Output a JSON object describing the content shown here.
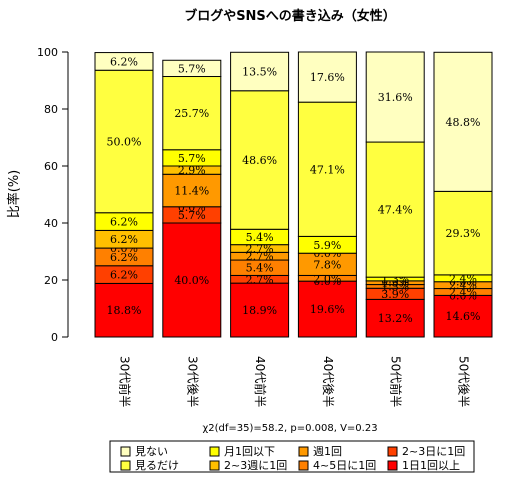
{
  "chart_data": {
    "type": "bar",
    "stacked": true,
    "title": "ブログやSNSへの書き込み（女性）",
    "ylabel": "比率(%)",
    "xlabel": "",
    "ylim": [
      0,
      100
    ],
    "yticks": [
      "0",
      "20",
      "40",
      "60",
      "80",
      "100"
    ],
    "categories": [
      "30代前半",
      "30代後半",
      "40代前半",
      "40代後半",
      "50代前半",
      "50代後半"
    ],
    "series": [
      {
        "name": "1日1回以上",
        "color": "#ff0000",
        "values": [
          18.8,
          40.0,
          18.9,
          19.6,
          13.2,
          14.6
        ],
        "labels": [
          "18.8%",
          "40.0%",
          "18.9%",
          "19.6%",
          "13.2%",
          "14.6%"
        ]
      },
      {
        "name": "2~3日に1回",
        "color": "#ff4000",
        "values": [
          6.2,
          5.7,
          2.7,
          0.0,
          3.9,
          0.0
        ],
        "labels": [
          "6.2%",
          "5.7%",
          "2.7%",
          "0.0%",
          "3.9%",
          "0.0%"
        ]
      },
      {
        "name": "4~5日に1回",
        "color": "#ff8000",
        "values": [
          6.2,
          0.0,
          5.4,
          2.0,
          1.3,
          2.4
        ],
        "labels": [
          "6.2%",
          "0.0%",
          "5.4%",
          "2.0%",
          "1.3%",
          "2.4%"
        ]
      },
      {
        "name": "週1回",
        "color": "#ff9900",
        "values": [
          0.0,
          11.4,
          2.7,
          7.8,
          1.3,
          2.4
        ],
        "labels": [
          "0.0%",
          "11.4%",
          "2.7%",
          "7.8%",
          "1.3%",
          "2.4%"
        ]
      },
      {
        "name": "2~3週に1回",
        "color": "#ffbf00",
        "values": [
          6.2,
          2.9,
          2.7,
          0.0,
          0.0,
          0.0
        ],
        "labels": [
          "6.2%",
          "2.9%",
          "2.7%",
          "0.0%",
          "0.0%",
          "0.0%"
        ]
      },
      {
        "name": "月1回以下",
        "color": "#ffff00",
        "values": [
          6.2,
          5.7,
          5.4,
          5.9,
          1.3,
          2.4
        ],
        "labels": [
          "6.2%",
          "5.7%",
          "5.4%",
          "5.9%",
          "1.3%",
          "2.4%"
        ]
      },
      {
        "name": "見るだけ",
        "color": "#ffff40",
        "values": [
          50.0,
          25.7,
          48.6,
          47.1,
          47.4,
          29.3
        ],
        "labels": [
          "50.0%",
          "25.7%",
          "48.6%",
          "47.1%",
          "47.4%",
          "29.3%"
        ]
      },
      {
        "name": "見ない",
        "color": "#ffffc0",
        "values": [
          6.2,
          5.7,
          13.5,
          17.6,
          31.6,
          48.8
        ],
        "labels": [
          "6.2%",
          "5.7%",
          "13.5%",
          "17.6%",
          "31.6%",
          "48.8%"
        ]
      }
    ],
    "legend_order": [
      "見ない",
      "月1回以下",
      "週1回",
      "2~3日に1回",
      "見るだけ",
      "2~3週に1回",
      "4~5日に1回",
      "1日1回以上"
    ],
    "legend_position": "bottom",
    "note": "χ2(df=35)=58.2, p=0.008, V=0.23"
  }
}
